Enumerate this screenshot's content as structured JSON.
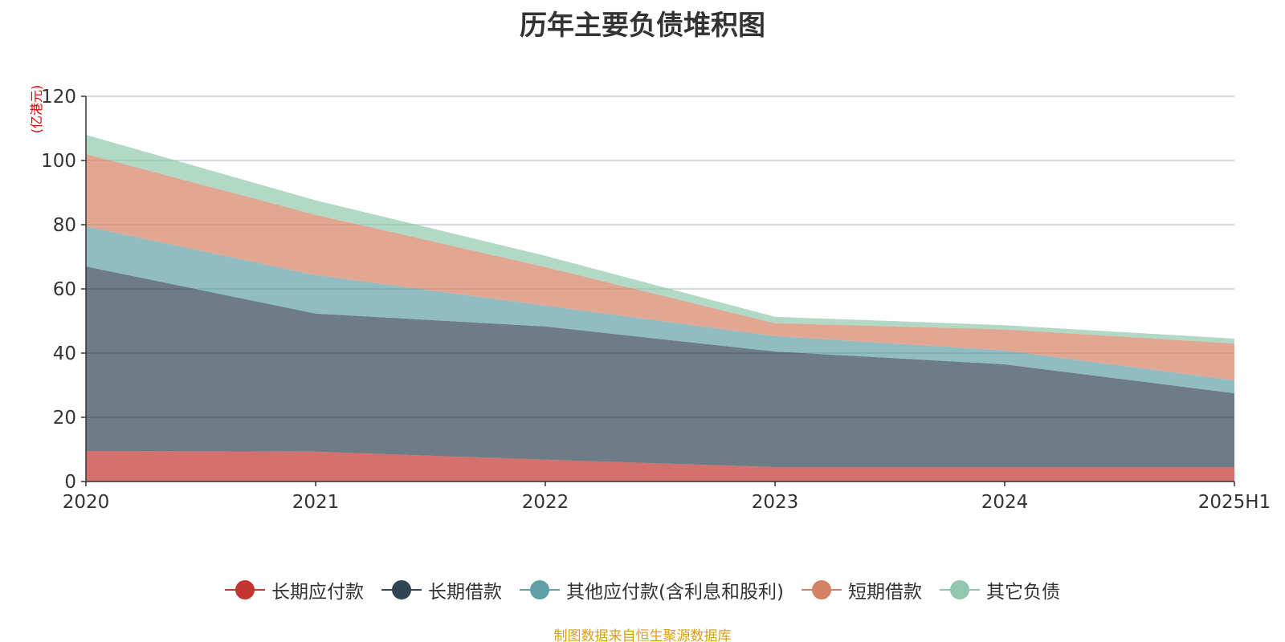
{
  "chart_data": {
    "type": "area",
    "stacked": true,
    "title": "历年主要负债堆积图",
    "ylabel": "(亿港元)",
    "xlabel": "",
    "categories": [
      "2020",
      "2021",
      "2022",
      "2023",
      "2024",
      "2025H1"
    ],
    "ylim": [
      0,
      120
    ],
    "yticks": [
      0,
      20,
      40,
      60,
      80,
      100,
      120
    ],
    "grid": true,
    "legend_position": "bottom",
    "series": [
      {
        "name": "长期应付款",
        "color": "#c23531",
        "values": [
          9.5,
          9.3,
          6.8,
          4.5,
          4.5,
          4.5
        ]
      },
      {
        "name": "长期借款",
        "color": "#2f4554",
        "values": [
          57.5,
          43.0,
          41.5,
          36.0,
          32.0,
          23.0
        ]
      },
      {
        "name": "其他应付款(含利息和股利)",
        "color": "#61a0a8",
        "values": [
          12.5,
          12.0,
          6.5,
          4.8,
          4.3,
          4.0
        ]
      },
      {
        "name": "短期借款",
        "color": "#d48265",
        "values": [
          22.5,
          18.8,
          12.0,
          4.0,
          6.6,
          11.5
        ]
      },
      {
        "name": "其它负债",
        "color": "#91c7ae",
        "values": [
          6.0,
          4.5,
          3.5,
          2.0,
          1.3,
          1.5
        ]
      }
    ]
  },
  "footer": {
    "source": "制图数据来自恒生聚源数据库"
  }
}
